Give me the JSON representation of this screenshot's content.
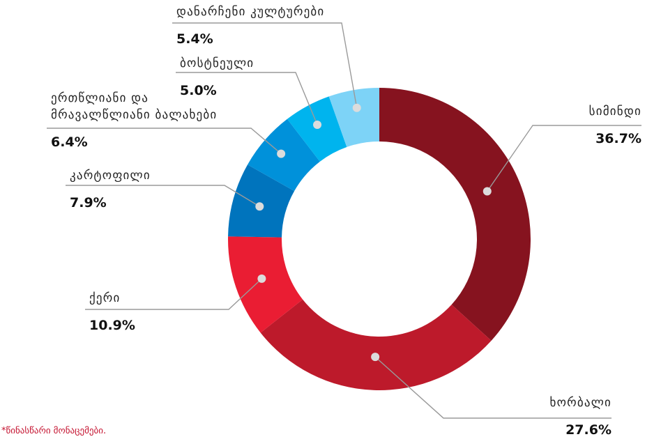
{
  "chart_data": {
    "type": "pie",
    "categories": [
      "სიმინდი",
      "ხორბალი",
      "ქერი",
      "კარტოფილი",
      "ერთწლიანი და მრავალწლიანი ბალახები",
      "ბოსტნეული",
      "დანარჩენი კულტურები"
    ],
    "values": [
      36.7,
      27.6,
      10.9,
      7.9,
      6.4,
      5.0,
      5.4
    ],
    "value_labels": [
      "36.7%",
      "27.6%",
      "10.9%",
      "7.9%",
      "6.4%",
      "5.0%",
      "5.4%"
    ],
    "label_lines": [
      [
        "სიმინდი"
      ],
      [
        "ხორბალი"
      ],
      [
        "ქერი"
      ],
      [
        "კარტოფილი"
      ],
      [
        "ერთწლიანი და",
        "მრავალწლიანი ბალახები"
      ],
      [
        "ბოსტნეული"
      ],
      [
        "დანარჩენი კულტურები"
      ]
    ],
    "colors": [
      "#86131f",
      "#bd1a2b",
      "#ea1d33",
      "#0074bd",
      "#0091da",
      "#00b4ee",
      "#7dd3f7"
    ],
    "donut": true,
    "start": "12 o'clock",
    "direction": "clockwise",
    "legend": "none"
  },
  "footnote": "*წინასწარი მონაცემები."
}
